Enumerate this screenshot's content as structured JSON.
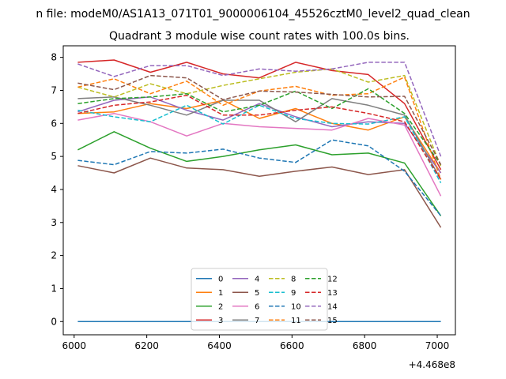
{
  "suptitle": "n file: modeM0/AS1A13_071T01_9000006104_45526cztM0_level2_quad_clean",
  "chart_data": {
    "type": "line",
    "title": "Quadrant 3 module wise count rates with 100.0s bins.",
    "xlabel": "",
    "ylabel": "",
    "x_offset_label": "+4.468e8",
    "xlim": [
      5970,
      7050
    ],
    "ylim": [
      -0.4,
      8.35
    ],
    "xticks": [
      6000,
      6200,
      6400,
      6600,
      6800,
      7000
    ],
    "yticks": [
      0,
      1,
      2,
      3,
      4,
      5,
      6,
      7,
      8
    ],
    "x": [
      6010,
      6110,
      6210,
      6310,
      6410,
      6510,
      6610,
      6710,
      6810,
      6910,
      7010
    ],
    "grid": false,
    "legend_position": "lower center",
    "legend_columns": 4,
    "series": [
      {
        "name": "0",
        "color": "#1f77b4",
        "dash": "solid",
        "values": [
          0,
          0,
          0,
          0,
          0,
          0,
          0,
          0,
          0,
          0,
          0
        ]
      },
      {
        "name": "1",
        "color": "#ff7f0e",
        "dash": "solid",
        "values": [
          6.3,
          6.35,
          6.6,
          6.45,
          6.7,
          6.15,
          6.45,
          6.0,
          5.8,
          6.2,
          4.5
        ]
      },
      {
        "name": "2",
        "color": "#2ca02c",
        "dash": "solid",
        "values": [
          5.2,
          5.75,
          5.25,
          4.85,
          5.0,
          5.2,
          5.35,
          5.05,
          5.1,
          4.8,
          3.2
        ]
      },
      {
        "name": "3",
        "color": "#d62728",
        "dash": "solid",
        "values": [
          7.85,
          7.92,
          7.55,
          7.85,
          7.5,
          7.38,
          7.85,
          7.6,
          7.48,
          6.6,
          4.6
        ]
      },
      {
        "name": "4",
        "color": "#9467bd",
        "dash": "solid",
        "values": [
          6.35,
          6.7,
          6.8,
          6.4,
          6.1,
          6.6,
          6.2,
          5.9,
          6.05,
          6.0,
          4.5
        ]
      },
      {
        "name": "5",
        "color": "#8c564b",
        "dash": "solid",
        "values": [
          4.72,
          4.5,
          4.95,
          4.65,
          4.6,
          4.4,
          4.55,
          4.68,
          4.45,
          4.6,
          2.85
        ]
      },
      {
        "name": "6",
        "color": "#e377c2",
        "dash": "solid",
        "values": [
          6.1,
          6.3,
          6.05,
          5.62,
          6.0,
          5.9,
          5.85,
          5.8,
          6.15,
          5.95,
          3.8
        ]
      },
      {
        "name": "7",
        "color": "#7f7f7f",
        "dash": "solid",
        "values": [
          6.75,
          6.8,
          6.55,
          6.25,
          6.7,
          6.7,
          6.05,
          6.75,
          6.55,
          6.25,
          4.3
        ]
      },
      {
        "name": "8",
        "color": "#bcbd22",
        "dash": "dashed",
        "values": [
          7.1,
          6.8,
          7.2,
          6.9,
          7.15,
          7.35,
          7.55,
          7.65,
          7.25,
          7.45,
          4.7
        ]
      },
      {
        "name": "9",
        "color": "#17becf",
        "dash": "dashed",
        "values": [
          6.4,
          6.2,
          6.05,
          6.55,
          5.98,
          6.55,
          6.15,
          6.0,
          5.98,
          6.2,
          4.2
        ]
      },
      {
        "name": "10",
        "color": "#1f77b4",
        "dash": "dashed",
        "values": [
          4.88,
          4.75,
          5.15,
          5.1,
          5.22,
          4.95,
          4.82,
          5.5,
          5.32,
          4.55,
          3.2
        ]
      },
      {
        "name": "11",
        "color": "#ff7f0e",
        "dash": "dashed",
        "values": [
          7.1,
          7.35,
          6.9,
          7.28,
          6.55,
          6.98,
          7.12,
          6.85,
          6.9,
          7.4,
          4.3
        ]
      },
      {
        "name": "12",
        "color": "#2ca02c",
        "dash": "dashed",
        "values": [
          6.6,
          6.75,
          6.8,
          6.9,
          6.35,
          6.55,
          6.98,
          6.45,
          7.05,
          6.3,
          4.75
        ]
      },
      {
        "name": "13",
        "color": "#d62728",
        "dash": "dashed",
        "values": [
          6.3,
          6.55,
          6.65,
          6.85,
          6.25,
          6.25,
          6.4,
          6.5,
          6.3,
          6.05,
          4.3
        ]
      },
      {
        "name": "14",
        "color": "#9467bd",
        "dash": "dashed",
        "values": [
          7.8,
          7.42,
          7.75,
          7.75,
          7.45,
          7.65,
          7.58,
          7.65,
          7.85,
          7.85,
          5.0
        ]
      },
      {
        "name": "15",
        "color": "#8c564b",
        "dash": "dashed",
        "values": [
          7.22,
          7.02,
          7.45,
          7.38,
          6.72,
          6.98,
          6.95,
          6.88,
          6.8,
          6.82,
          4.75
        ]
      }
    ]
  }
}
